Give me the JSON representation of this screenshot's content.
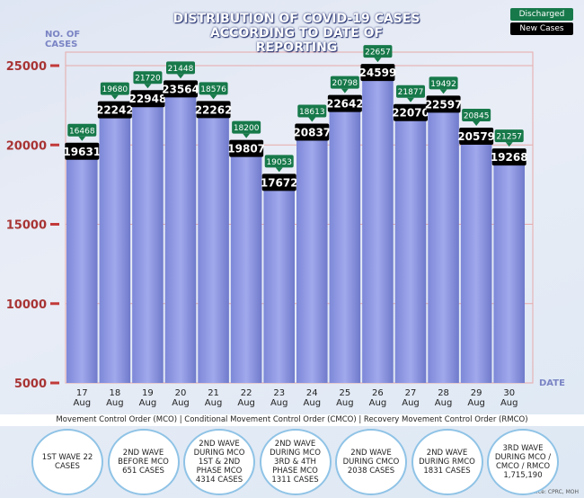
{
  "chart_data": {
    "type": "bar",
    "title": "DISTRIBUTION OF COVID-19 CASES ACCORDING TO DATE OF REPORTING",
    "y_label": "NO. OF CASES",
    "x_label": "DATE",
    "categories": [
      "17 Aug",
      "18 Aug",
      "19 Aug",
      "20 Aug",
      "21 Aug",
      "22 Aug",
      "23 Aug",
      "24 Aug",
      "25 Aug",
      "26 Aug",
      "27 Aug",
      "28 Aug",
      "29 Aug",
      "30 Aug"
    ],
    "series": [
      {
        "name": "New Cases",
        "color": "#000000",
        "values": [
          19631,
          22242,
          22948,
          23564,
          22262,
          19807,
          17672,
          20837,
          22642,
          24599,
          22070,
          22597,
          20579,
          19268
        ]
      },
      {
        "name": "Discharged",
        "color": "#17794a",
        "values": [
          16468,
          19680,
          21720,
          21448,
          18576,
          18200,
          19053,
          18613,
          20798,
          22657,
          21877,
          19492,
          20845,
          21257
        ]
      }
    ],
    "ylim": [
      5000,
      25000
    ],
    "yticks": [
      5000,
      10000,
      15000,
      20000,
      25000
    ],
    "grid": true,
    "note": "Movement Control Order (MCO) | Conditional Movement Control Order (CMCO) | Recovery Movement Control Order (RMCO)",
    "waves": [
      "1ST WAVE 22 CASES",
      "2ND WAVE BEFORE MCO 651 CASES",
      "2ND WAVE DURING MCO 1ST & 2ND PHASE MCO 4314 CASES",
      "2ND WAVE DURING MCO 3RD & 4TH PHASE MCO 1311 CASES",
      "2ND WAVE DURING CMCO 2038 CASES",
      "2ND WAVE DURING RMCO 1831 CASES",
      "3RD WAVE DURING MCO / CMCO / RMCO 1,715,190"
    ],
    "source": "Source: CPRC, MOH"
  }
}
